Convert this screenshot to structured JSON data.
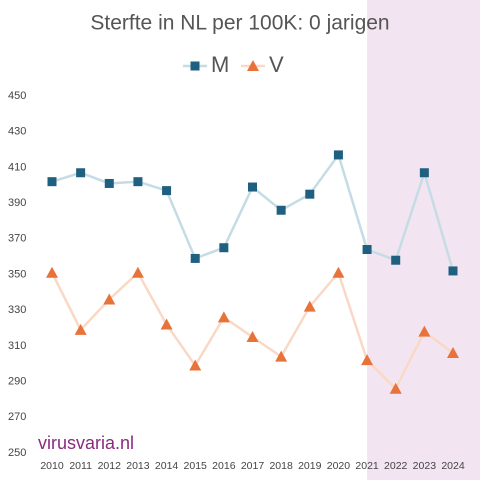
{
  "chart_data": {
    "type": "line",
    "title": "Sterfte in NL per 100K: 0 jarigen",
    "categories": [
      "2010",
      "2011",
      "2012",
      "2013",
      "2014",
      "2015",
      "2016",
      "2017",
      "2018",
      "2019",
      "2020",
      "2021",
      "2022",
      "2023",
      "2024"
    ],
    "series": [
      {
        "name": "M",
        "color": "#1f5f80",
        "line_color": "#c6dce5",
        "marker": "square",
        "values": [
          402,
          407,
          401,
          402,
          397,
          359,
          365,
          399,
          386,
          395,
          417,
          364,
          358,
          407,
          352
        ]
      },
      {
        "name": "V",
        "color": "#e8733a",
        "line_color": "#f9d9c6",
        "marker": "triangle",
        "values": [
          351,
          319,
          336,
          351,
          322,
          299,
          326,
          315,
          304,
          332,
          351,
          302,
          286,
          318,
          306
        ]
      }
    ],
    "ylim": [
      250,
      450
    ],
    "yticks": [
      250,
      270,
      290,
      310,
      330,
      350,
      370,
      390,
      410,
      430,
      450
    ],
    "grid": false,
    "legend": "top",
    "highlight_from": "2021",
    "highlight_color": "#f3e4f1",
    "annotation": "virusvaria.nl"
  }
}
